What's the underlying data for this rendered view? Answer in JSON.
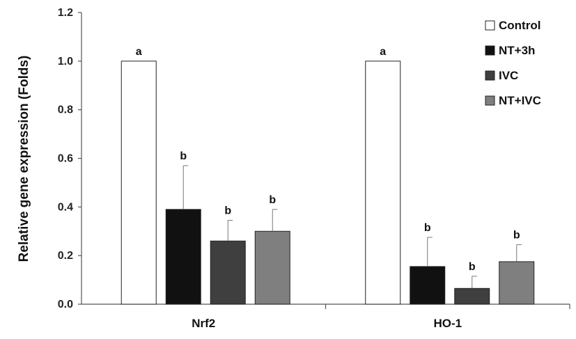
{
  "chart_data": {
    "type": "bar",
    "title": "",
    "xlabel": "",
    "ylabel": "Relative gene expression  (Folds)",
    "ylim": [
      0,
      1.2
    ],
    "yticks": [
      "0.0",
      "0.2",
      "0.4",
      "0.6",
      "0.8",
      "1.0",
      "1.2"
    ],
    "categories": [
      "Nrf2",
      "HO-1"
    ],
    "series": [
      {
        "name": "Control",
        "color": "#ffffff",
        "values": [
          1.0,
          1.0
        ],
        "errors": [
          0,
          0
        ],
        "labels": [
          "a",
          "a"
        ]
      },
      {
        "name": "NT+3h",
        "color": "#111111",
        "values": [
          0.39,
          0.155
        ],
        "errors": [
          0.18,
          0.12
        ],
        "labels": [
          "b",
          "b"
        ]
      },
      {
        "name": "IVC",
        "color": "#3f3f3f",
        "values": [
          0.26,
          0.065
        ],
        "errors": [
          0.085,
          0.05
        ],
        "labels": [
          "b",
          "b"
        ]
      },
      {
        "name": "NT+IVC",
        "color": "#7f7f7f",
        "values": [
          0.3,
          0.175
        ],
        "errors": [
          0.09,
          0.07
        ],
        "labels": [
          "b",
          "b"
        ]
      }
    ],
    "grid": false,
    "legend_position": "top-right"
  }
}
